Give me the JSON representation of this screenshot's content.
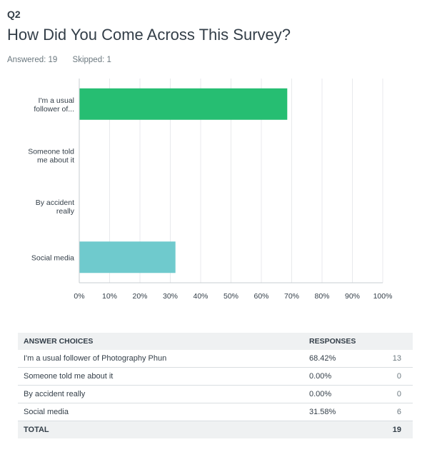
{
  "question": {
    "number": "Q2",
    "title": "How Did You Come Across This Survey?",
    "answered_label": "Answered: 19",
    "skipped_label": "Skipped: 1"
  },
  "chart_data": {
    "type": "bar",
    "orientation": "horizontal",
    "categories": [
      [
        "I'm a usual",
        "follower of..."
      ],
      [
        "Someone told",
        "me about it"
      ],
      [
        "By accident",
        "really"
      ],
      [
        "Social media"
      ]
    ],
    "values": [
      68.42,
      0,
      0,
      31.58
    ],
    "bar_colors": [
      "#26be72",
      "#26be72",
      "#26be72",
      "#6fcacd"
    ],
    "xlim": [
      0,
      100
    ],
    "xticks": [
      "0%",
      "10%",
      "20%",
      "30%",
      "40%",
      "50%",
      "60%",
      "70%",
      "80%",
      "90%",
      "100%"
    ],
    "grid": true
  },
  "table": {
    "headers": [
      "ANSWER CHOICES",
      "RESPONSES",
      ""
    ],
    "rows": [
      {
        "choice": "I'm a usual follower of Photography Phun",
        "percent": "68.42%",
        "count": "13"
      },
      {
        "choice": "Someone told me about it",
        "percent": "0.00%",
        "count": "0"
      },
      {
        "choice": "By accident really",
        "percent": "0.00%",
        "count": "0"
      },
      {
        "choice": "Social media",
        "percent": "31.58%",
        "count": "6"
      }
    ],
    "total_label": "TOTAL",
    "total_count": "19"
  }
}
